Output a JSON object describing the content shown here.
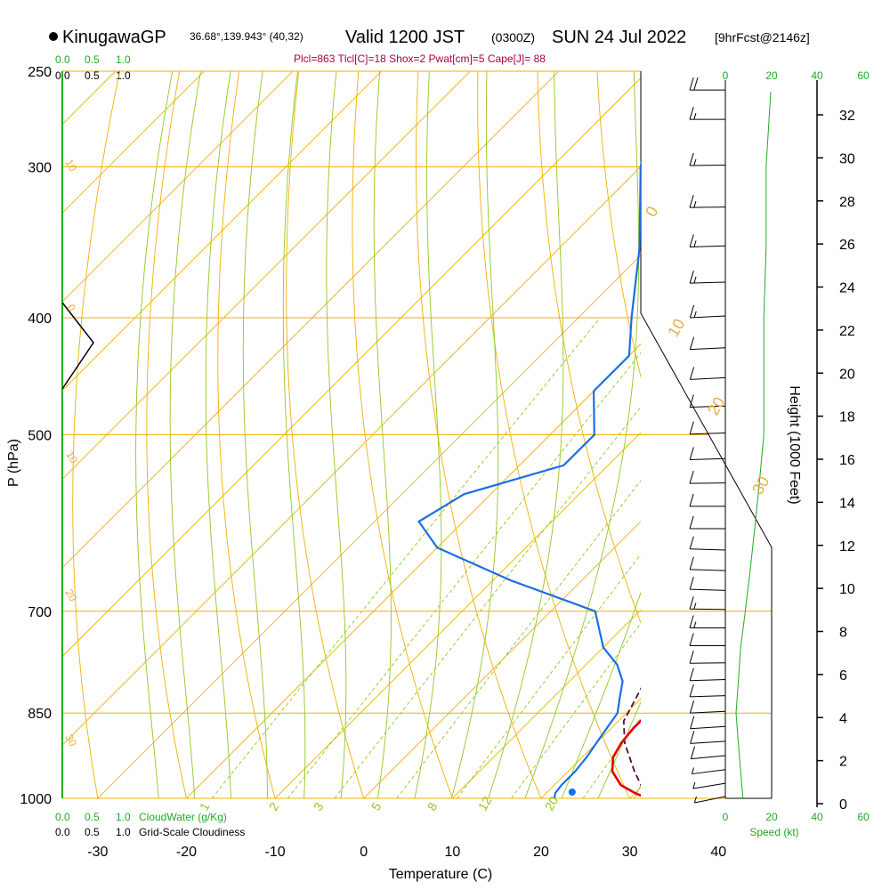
{
  "header": {
    "station": "KinugawaGP",
    "coords": "36.68°,139.943° (40,32)",
    "valid": "Valid 1200 JST",
    "utc": "(0300Z)",
    "date": "SUN 24 Jul 2022",
    "forecast": "[9hrFcst@2146z]",
    "indices": "Plcl=863 Tlcl[C]=18 Shox=2 Pwat[cm]=5 Cape[J]= 88"
  },
  "colors": {
    "temperature": "#e00000",
    "dewpoint": "#1a6ee6",
    "parcel": "#5a0040",
    "isotherm": "#f0b000",
    "dry_adiabat": "#f0b000",
    "moist_adiabat": "#90c820",
    "mixing_ratio": "#90c820",
    "green_text": "#22aa22",
    "indices_text": "#aa0044",
    "label_orange": "#e8b040"
  },
  "chart_data": {
    "type": "skew-t",
    "xlabel": "Temperature (C)",
    "ylabel": "P (hPa)",
    "y2label": "Height (1000 Feet)",
    "temperature_ticks": [
      -30,
      -20,
      -10,
      0,
      10,
      20,
      30,
      40
    ],
    "pressure_ticks": [
      250,
      300,
      400,
      500,
      700,
      850,
      1000
    ],
    "height_ticks": [
      0,
      2,
      4,
      6,
      8,
      10,
      12,
      14,
      16,
      18,
      20,
      22,
      24,
      26,
      28,
      30,
      32
    ],
    "xlim": [
      -34,
      46
    ],
    "ylim": [
      1000,
      250
    ],
    "dry_adiabat_labels": [
      "0",
      "10",
      "20",
      "30"
    ],
    "isotherm_labels_left": [
      "10",
      "0",
      "10",
      "20",
      "30"
    ],
    "mixing_ratio_labels": [
      "1",
      "2",
      "3",
      "5",
      "8",
      "12",
      "20"
    ],
    "cloudwater_labels": [
      "0.0",
      "0.5",
      "1.0"
    ],
    "cloudwater_title": "CloudWater (g/Kg)",
    "cloudiness_labels": [
      "0.0",
      "0.5",
      "1.0"
    ],
    "cloudiness_title": "Grid-Scale Cloudiness",
    "speed_labels": [
      "0",
      "20",
      "40",
      "60"
    ],
    "speed_title": "Speed (kt)",
    "temperature_profile": [
      [
        1000,
        32.0
      ],
      [
        990,
        30.0
      ],
      [
        975,
        27.5
      ],
      [
        950,
        25.0
      ],
      [
        925,
        23.5
      ],
      [
        900,
        22.8
      ],
      [
        875,
        22.5
      ],
      [
        850,
        22.5
      ],
      [
        825,
        23.3
      ],
      [
        800,
        22.8
      ],
      [
        775,
        22.3
      ],
      [
        750,
        21.8
      ],
      [
        700,
        20.5
      ],
      [
        650,
        19.5
      ],
      [
        600,
        18.0
      ],
      [
        550,
        15.0
      ],
      [
        500,
        12.0
      ],
      [
        450,
        8.0
      ],
      [
        400,
        4.0
      ],
      [
        350,
        -1.0
      ],
      [
        300,
        -8.0
      ],
      [
        265,
        -13.0
      ]
    ],
    "dewpoint_profile": [
      [
        1000,
        21.5
      ],
      [
        990,
        21.0
      ],
      [
        975,
        20.8
      ],
      [
        950,
        20.8
      ],
      [
        925,
        20.5
      ],
      [
        900,
        20.0
      ],
      [
        850,
        19.0
      ],
      [
        825,
        17.5
      ],
      [
        800,
        16.0
      ],
      [
        775,
        13.5
      ],
      [
        750,
        10.0
      ],
      [
        700,
        5.0
      ],
      [
        660,
        -8.0
      ],
      [
        620,
        -20.0
      ],
      [
        590,
        -25.0
      ],
      [
        560,
        -23.0
      ],
      [
        530,
        -15.0
      ],
      [
        500,
        -15.0
      ],
      [
        460,
        -20.0
      ],
      [
        430,
        -20.0
      ],
      [
        400,
        -24.0
      ],
      [
        350,
        -31.0
      ],
      [
        300,
        -40.0
      ],
      [
        265,
        -46.0
      ]
    ],
    "parcel_profile": [
      [
        1000,
        32.0
      ],
      [
        950,
        27.5
      ],
      [
        900,
        23.2
      ],
      [
        863,
        20.6
      ],
      [
        850,
        20.2
      ],
      [
        800,
        18.5
      ],
      [
        750,
        17.0
      ],
      [
        700,
        15.0
      ],
      [
        650,
        13.0
      ]
    ],
    "surface_dewpoint_marker": [
      1000,
      23.5
    ],
    "height_curve_kt": [
      [
        1000,
        3
      ],
      [
        950,
        2
      ],
      [
        900,
        1
      ],
      [
        850,
        0
      ],
      [
        800,
        1
      ],
      [
        750,
        2
      ],
      [
        700,
        4
      ],
      [
        650,
        6
      ],
      [
        600,
        8
      ],
      [
        550,
        10
      ],
      [
        500,
        12
      ],
      [
        450,
        12
      ],
      [
        400,
        12
      ],
      [
        350,
        13
      ],
      [
        300,
        13
      ],
      [
        260,
        15
      ]
    ],
    "wind_barbs": [
      [
        1000,
        240,
        5
      ],
      [
        975,
        245,
        7
      ],
      [
        950,
        250,
        8
      ],
      [
        925,
        255,
        10
      ],
      [
        900,
        260,
        10
      ],
      [
        875,
        260,
        12
      ],
      [
        850,
        262,
        12
      ],
      [
        825,
        265,
        12
      ],
      [
        800,
        265,
        14
      ],
      [
        775,
        268,
        14
      ],
      [
        750,
        270,
        14
      ],
      [
        725,
        270,
        15
      ],
      [
        700,
        272,
        15
      ],
      [
        675,
        275,
        14
      ],
      [
        650,
        275,
        12
      ],
      [
        625,
        275,
        12
      ],
      [
        600,
        270,
        10
      ],
      [
        575,
        270,
        10
      ],
      [
        550,
        268,
        10
      ],
      [
        525,
        265,
        12
      ],
      [
        500,
        265,
        12
      ],
      [
        475,
        265,
        14
      ],
      [
        450,
        262,
        14
      ],
      [
        425,
        262,
        14
      ],
      [
        400,
        262,
        15
      ],
      [
        375,
        265,
        15
      ],
      [
        350,
        265,
        16
      ],
      [
        325,
        268,
        16
      ],
      [
        300,
        268,
        18
      ],
      [
        275,
        270,
        18
      ],
      [
        260,
        270,
        20
      ]
    ]
  }
}
